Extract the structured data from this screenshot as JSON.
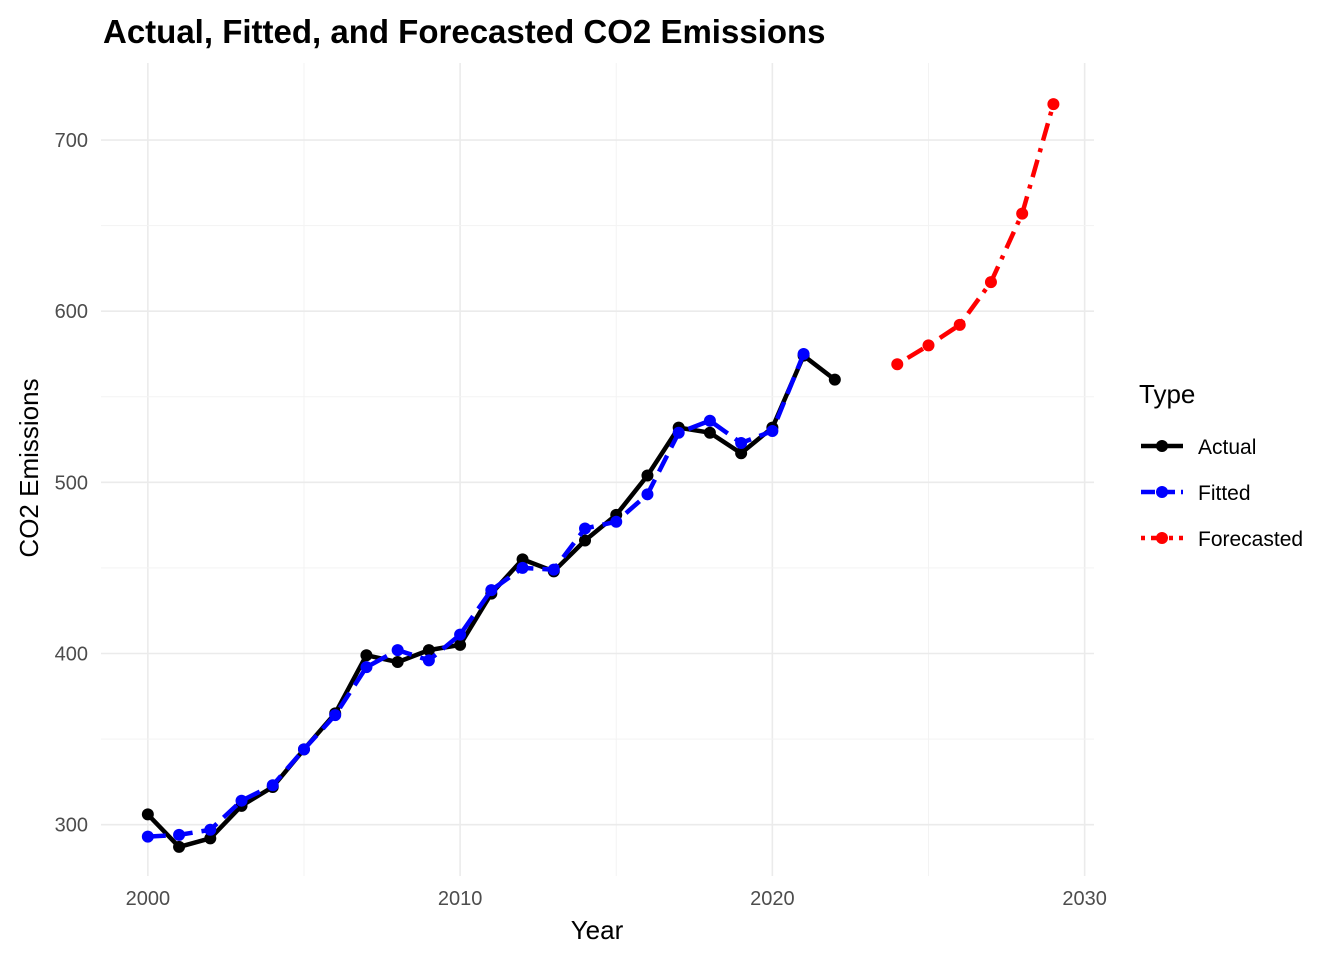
{
  "chart_data": {
    "type": "line",
    "title": "Actual, Fitted, and Forecasted CO2 Emissions",
    "xlabel": "Year",
    "ylabel": "CO2 Emissions",
    "xlim": [
      1998.5,
      2030.3
    ],
    "ylim": [
      270,
      745
    ],
    "x_ticks": [
      2000,
      2010,
      2020,
      2030
    ],
    "y_ticks": [
      300,
      400,
      500,
      600,
      700
    ],
    "x_tick_labels": [
      "2000",
      "2010",
      "2020",
      "2030"
    ],
    "y_tick_labels": [
      "300",
      "400",
      "500",
      "600",
      "700"
    ],
    "grid": true,
    "legend_placement": "right",
    "legend_title": "Type",
    "series": [
      {
        "name": "Actual",
        "color": "#000000",
        "line_style": "solid",
        "x": [
          2000,
          2001,
          2002,
          2003,
          2004,
          2005,
          2006,
          2007,
          2008,
          2009,
          2010,
          2011,
          2012,
          2013,
          2014,
          2015,
          2016,
          2017,
          2018,
          2019,
          2020,
          2021,
          2022
        ],
        "values": [
          306,
          287,
          292,
          311,
          322,
          344,
          365,
          399,
          395,
          402,
          405,
          435,
          455,
          448,
          466,
          481,
          504,
          532,
          529,
          517,
          532,
          574,
          560
        ]
      },
      {
        "name": "Fitted",
        "color": "#0000ff",
        "line_style": "dashed",
        "x": [
          2000,
          2001,
          2002,
          2003,
          2004,
          2005,
          2006,
          2007,
          2008,
          2009,
          2010,
          2011,
          2012,
          2013,
          2014,
          2015,
          2016,
          2017,
          2018,
          2019,
          2020,
          2021
        ],
        "values": [
          293,
          294,
          297,
          314,
          323,
          344,
          364,
          392,
          402,
          396,
          411,
          437,
          450,
          449,
          473,
          477,
          493,
          529,
          536,
          523,
          530,
          575
        ]
      },
      {
        "name": "Forecasted",
        "color": "#ff0000",
        "line_style": "dotdash",
        "x": [
          2024,
          2025,
          2026,
          2027,
          2028,
          2029
        ],
        "values": [
          569,
          580,
          592,
          617,
          657,
          721
        ]
      }
    ]
  }
}
